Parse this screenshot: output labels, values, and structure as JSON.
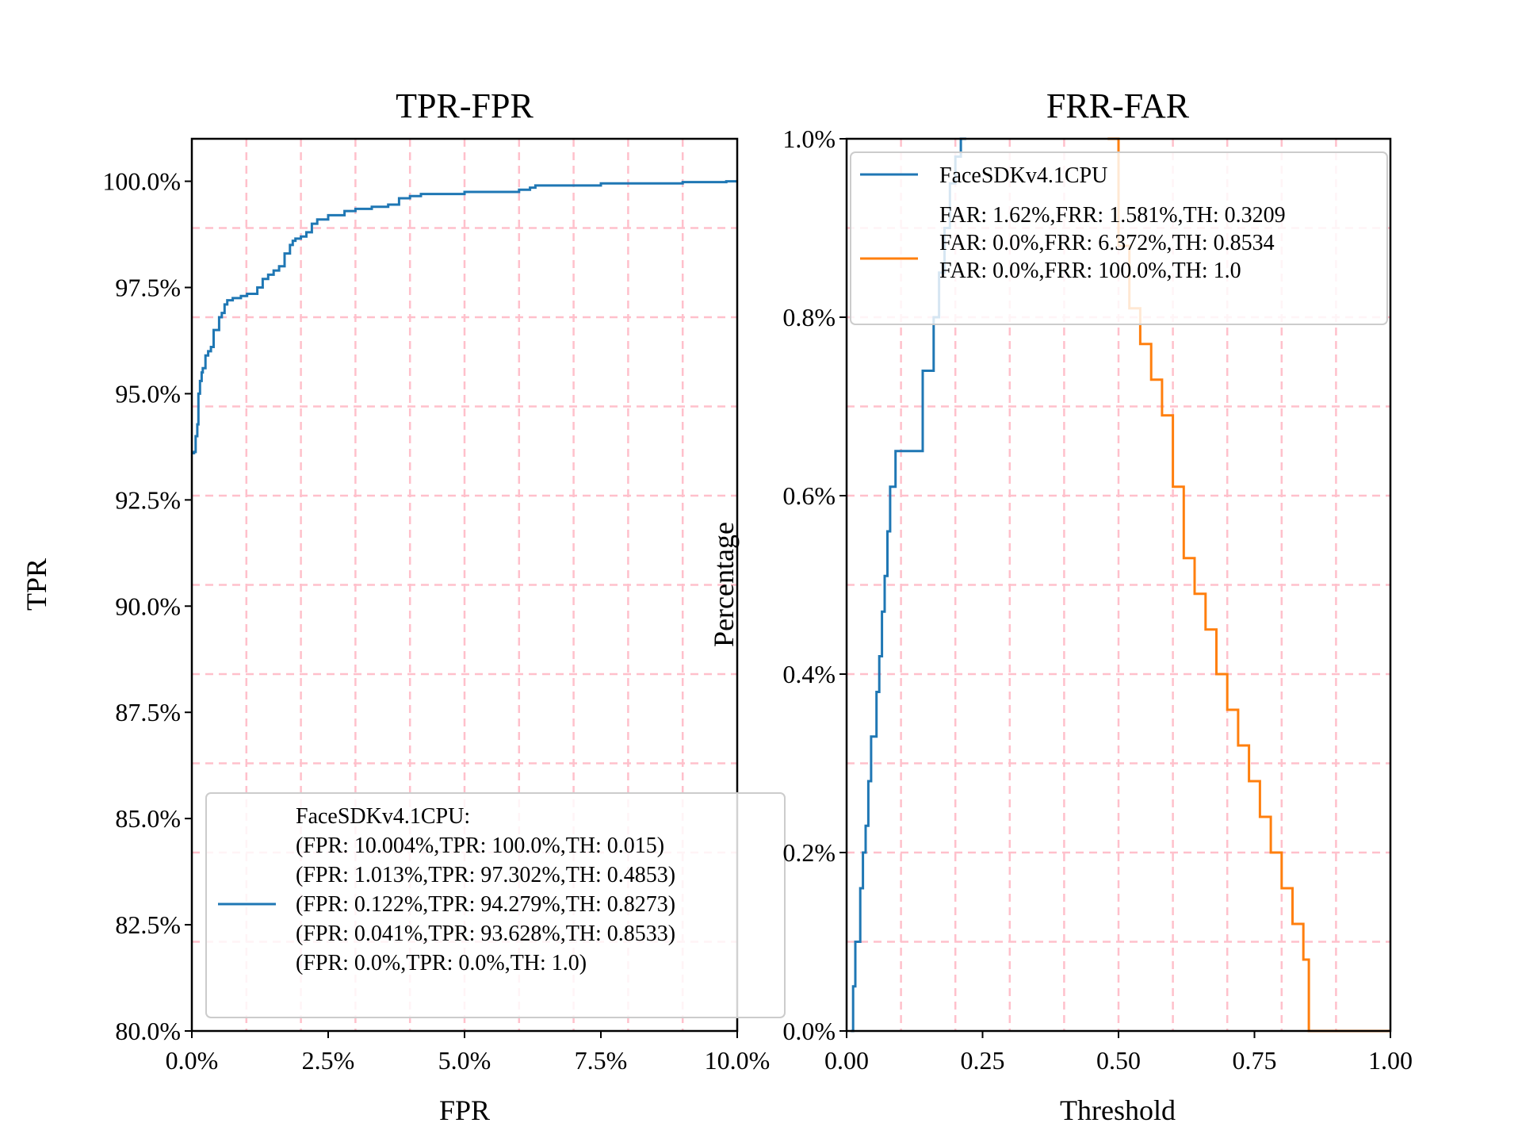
{
  "chart_data": [
    {
      "type": "line",
      "title": "TPR-FPR",
      "xlabel": "FPR",
      "ylabel": "TPR",
      "xlim": [
        0,
        10
      ],
      "ylim": [
        80,
        101
      ],
      "xticks": [
        0,
        2.5,
        5,
        7.5,
        10
      ],
      "xtick_labels": [
        "0.0%",
        "2.5%",
        "5.0%",
        "7.5%",
        "10.0%"
      ],
      "yticks": [
        80,
        82.5,
        85,
        87.5,
        90,
        92.5,
        95,
        97.5,
        100
      ],
      "ytick_labels": [
        "80.0%",
        "82.5%",
        "85.0%",
        "87.5%",
        "90.0%",
        "92.5%",
        "95.0%",
        "97.5%",
        "100.0%"
      ],
      "grid": true,
      "legend_position": "lower-right",
      "legend_lines": [
        "FaceSDKv4.1CPU:",
        "(FPR: 10.004%,TPR: 100.0%,TH: 0.015)",
        "(FPR: 1.013%,TPR: 97.302%,TH: 0.4853)",
        "(FPR: 0.122%,TPR: 94.279%,TH: 0.8273)",
        "(FPR: 0.041%,TPR: 93.628%,TH: 0.8533)",
        "(FPR: 0.0%,TPR: 0.0%,TH: 1.0)"
      ],
      "series": [
        {
          "color": "#1f77b4",
          "x": [
            0,
            0.04,
            0.07,
            0.1,
            0.12,
            0.15,
            0.18,
            0.2,
            0.25,
            0.3,
            0.35,
            0.4,
            0.5,
            0.55,
            0.6,
            0.65,
            0.7,
            0.75,
            0.8,
            0.9,
            1.0,
            1.013,
            1.2,
            1.3,
            1.4,
            1.5,
            1.6,
            1.7,
            1.8,
            1.85,
            1.9,
            2.0,
            2.1,
            2.2,
            2.3,
            2.5,
            2.8,
            3.0,
            3.3,
            3.6,
            3.8,
            4.0,
            4.2,
            4.5,
            5.0,
            5.5,
            6.0,
            6.2,
            6.3,
            7.0,
            7.5,
            8.0,
            9.0,
            9.8,
            10.0
          ],
          "y": [
            93.6,
            93.628,
            94.0,
            94.279,
            95.0,
            95.3,
            95.5,
            95.6,
            95.9,
            96.0,
            96.1,
            96.5,
            96.8,
            96.9,
            97.1,
            97.2,
            97.2,
            97.25,
            97.25,
            97.3,
            97.302,
            97.35,
            97.5,
            97.7,
            97.8,
            97.9,
            98.0,
            98.3,
            98.5,
            98.6,
            98.65,
            98.7,
            98.8,
            99.0,
            99.1,
            99.2,
            99.3,
            99.35,
            99.4,
            99.45,
            99.6,
            99.65,
            99.7,
            99.7,
            99.75,
            99.75,
            99.8,
            99.85,
            99.9,
            99.9,
            99.95,
            99.95,
            99.98,
            100.0,
            100.0
          ]
        }
      ]
    },
    {
      "type": "line",
      "title": "FRR-FAR",
      "xlabel": "Threshold",
      "ylabel": "Percentage",
      "xlim": [
        0,
        1
      ],
      "ylim": [
        0,
        1
      ],
      "xticks": [
        0,
        0.25,
        0.5,
        0.75,
        1.0
      ],
      "xtick_labels": [
        "0.00",
        "0.25",
        "0.50",
        "0.75",
        "1.00"
      ],
      "yticks": [
        0,
        0.2,
        0.4,
        0.6,
        0.8,
        1.0
      ],
      "ytick_labels": [
        "0.0%",
        "0.2%",
        "0.4%",
        "0.6%",
        "0.8%",
        "1.0%"
      ],
      "grid": true,
      "legend_position": "upper-right",
      "legend_lines": [
        "FaceSDKv4.1CPU",
        "FAR: 1.62%,FRR: 1.581%,TH: 0.3209",
        "FAR: 0.0%,FRR: 6.372%,TH: 0.8534",
        "FAR: 0.0%,FRR: 100.0%,TH: 1.0"
      ],
      "series": [
        {
          "color": "#1f77b4",
          "x": [
            0.008,
            0.012,
            0.016,
            0.025,
            0.03,
            0.035,
            0.04,
            0.045,
            0.055,
            0.06,
            0.065,
            0.07,
            0.075,
            0.08,
            0.09,
            0.1,
            0.14,
            0.15,
            0.16,
            0.17,
            0.18,
            0.19,
            0.2,
            0.21,
            0.22
          ],
          "y": [
            0,
            0.05,
            0.1,
            0.16,
            0.2,
            0.23,
            0.28,
            0.33,
            0.38,
            0.42,
            0.47,
            0.51,
            0.56,
            0.61,
            0.65,
            0.65,
            0.74,
            0.74,
            0.8,
            0.85,
            0.9,
            0.95,
            0.98,
            1.0,
            1.0
          ]
        },
        {
          "color": "#ff7f0e",
          "x": [
            0.48,
            0.5,
            0.52,
            0.54,
            0.56,
            0.58,
            0.6,
            0.62,
            0.64,
            0.66,
            0.68,
            0.7,
            0.72,
            0.74,
            0.76,
            0.78,
            0.8,
            0.82,
            0.84,
            0.85,
            0.9,
            1.0
          ],
          "y": [
            1.0,
            0.88,
            0.81,
            0.77,
            0.73,
            0.69,
            0.61,
            0.53,
            0.49,
            0.45,
            0.4,
            0.36,
            0.32,
            0.28,
            0.24,
            0.2,
            0.16,
            0.12,
            0.08,
            0.0,
            0.0,
            0.0
          ]
        }
      ]
    }
  ]
}
